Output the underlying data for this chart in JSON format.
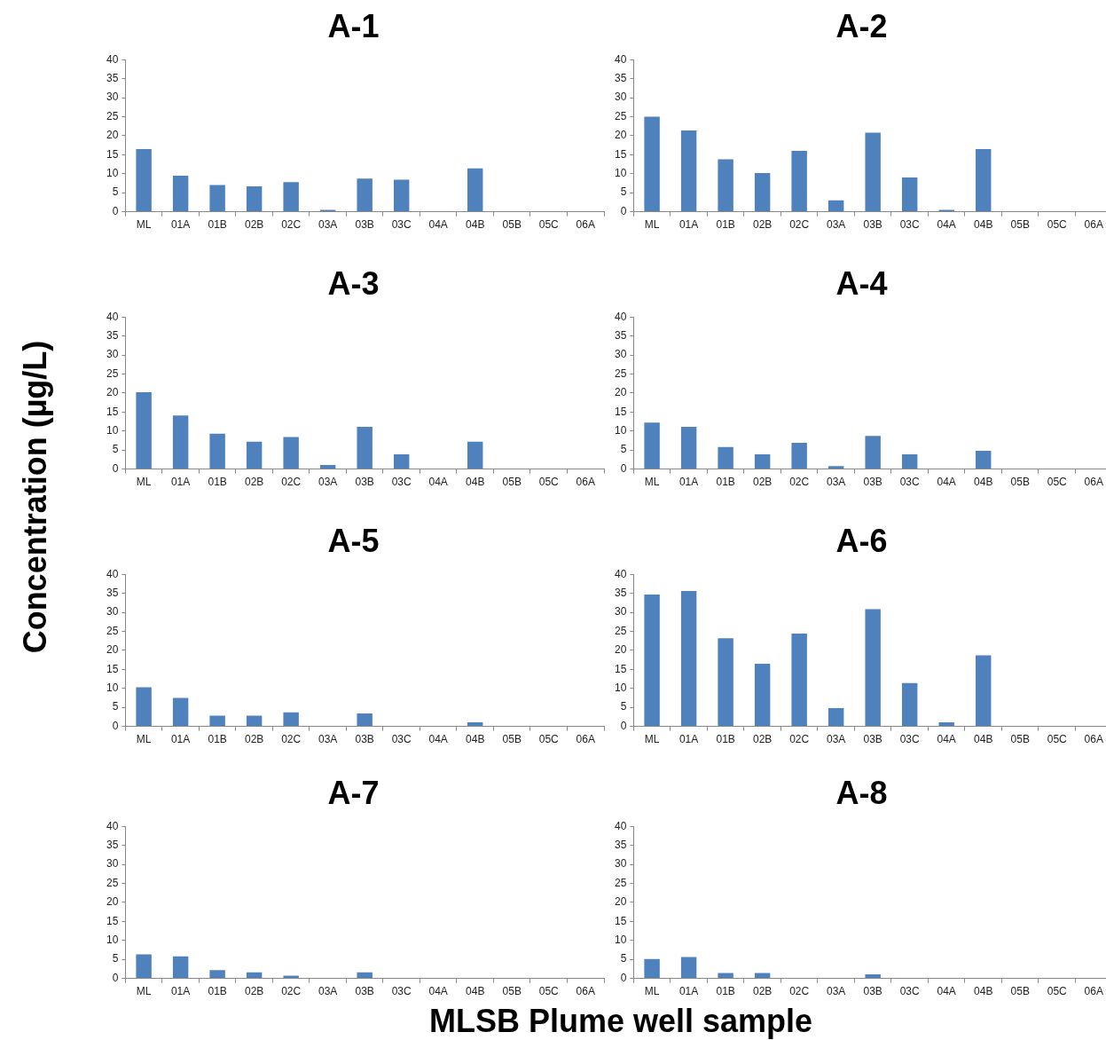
{
  "chart_data": [
    {
      "type": "bar",
      "title": "A-1",
      "ylabel": "Concentration (µg/L)",
      "categories": [
        "ML",
        "01A",
        "01B",
        "02B",
        "02C",
        "03A",
        "03B",
        "03C",
        "04A",
        "04B",
        "05B",
        "05C",
        "06A"
      ],
      "values": [
        16.5,
        9.5,
        7,
        6.7,
        7.8,
        0.5,
        8.7,
        8.4,
        0,
        11.4,
        0,
        0,
        0
      ],
      "color": "#4f81bd",
      "ylim": [
        0,
        40
      ],
      "yticks": [
        0,
        5,
        10,
        15,
        20,
        25,
        30,
        35,
        40
      ],
      "grid": false
    },
    {
      "type": "bar",
      "title": "A-2",
      "categories": [
        "ML",
        "01A",
        "01B",
        "02B",
        "02C",
        "03A",
        "03B",
        "03C",
        "04A",
        "04B",
        "05B",
        "05C",
        "06A"
      ],
      "values": [
        25,
        21.4,
        13.8,
        10.2,
        16,
        3,
        20.8,
        9,
        0.5,
        16.5,
        0,
        0,
        0
      ],
      "color": "#4f81bd",
      "ylim": [
        0,
        40
      ],
      "yticks": [
        0,
        5,
        10,
        15,
        20,
        25,
        30,
        35,
        40
      ],
      "grid": false
    },
    {
      "type": "bar",
      "title": "A-3",
      "categories": [
        "ML",
        "01A",
        "01B",
        "02B",
        "02C",
        "03A",
        "03B",
        "03C",
        "04A",
        "04B",
        "05B",
        "05C",
        "06A"
      ],
      "values": [
        20.2,
        14.1,
        9.3,
        7.2,
        8.4,
        1.1,
        11.1,
        3.9,
        0,
        7.2,
        0,
        0,
        0
      ],
      "color": "#4f81bd",
      "ylim": [
        0,
        40
      ],
      "yticks": [
        0,
        5,
        10,
        15,
        20,
        25,
        30,
        35,
        40
      ],
      "grid": false
    },
    {
      "type": "bar",
      "title": "A-4",
      "categories": [
        "ML",
        "01A",
        "01B",
        "02B",
        "02C",
        "03A",
        "03B",
        "03C",
        "04A",
        "04B",
        "05B",
        "05C",
        "06A"
      ],
      "values": [
        12.2,
        11.1,
        5.8,
        3.9,
        6.9,
        0.8,
        8.7,
        3.9,
        0,
        4.8,
        0,
        0,
        0
      ],
      "color": "#4f81bd",
      "ylim": [
        0,
        40
      ],
      "yticks": [
        0,
        5,
        10,
        15,
        20,
        25,
        30,
        35,
        40
      ],
      "grid": false
    },
    {
      "type": "bar",
      "title": "A-5",
      "categories": [
        "ML",
        "01A",
        "01B",
        "02B",
        "02C",
        "03A",
        "03B",
        "03C",
        "04A",
        "04B",
        "05B",
        "05C",
        "06A"
      ],
      "values": [
        10.3,
        7.5,
        2.8,
        2.8,
        3.7,
        0,
        3.4,
        0,
        0,
        1.1,
        0,
        0,
        0
      ],
      "color": "#4f81bd",
      "ylim": [
        0,
        40
      ],
      "yticks": [
        0,
        5,
        10,
        15,
        20,
        25,
        30,
        35,
        40
      ],
      "grid": false
    },
    {
      "type": "bar",
      "title": "A-6",
      "categories": [
        "ML",
        "01A",
        "01B",
        "02B",
        "02C",
        "03A",
        "03B",
        "03C",
        "04A",
        "04B",
        "05B",
        "05C",
        "06A"
      ],
      "values": [
        34.7,
        35.6,
        23.2,
        16.5,
        24.4,
        4.8,
        30.8,
        11.4,
        1.1,
        18.7,
        0,
        0,
        0
      ],
      "color": "#4f81bd",
      "ylim": [
        0,
        40
      ],
      "yticks": [
        0,
        5,
        10,
        15,
        20,
        25,
        30,
        35,
        40
      ],
      "grid": false
    },
    {
      "type": "bar",
      "title": "A-7",
      "categories": [
        "ML",
        "01A",
        "01B",
        "02B",
        "02C",
        "03A",
        "03B",
        "03C",
        "04A",
        "04B",
        "05B",
        "05C",
        "06A"
      ],
      "values": [
        6.3,
        5.8,
        2.2,
        1.6,
        0.7,
        0,
        1.6,
        0,
        0,
        0,
        0,
        0,
        0
      ],
      "color": "#4f81bd",
      "ylim": [
        0,
        40
      ],
      "yticks": [
        0,
        5,
        10,
        15,
        20,
        25,
        30,
        35,
        40
      ],
      "grid": false
    },
    {
      "type": "bar",
      "title": "A-8",
      "xlabel": "MLSB Plume well sample",
      "categories": [
        "ML",
        "01A",
        "01B",
        "02B",
        "02C",
        "03A",
        "03B",
        "03C",
        "04A",
        "04B",
        "05B",
        "05C",
        "06A"
      ],
      "values": [
        5.1,
        5.6,
        1.4,
        1.4,
        0,
        0,
        1.1,
        0,
        0,
        0,
        0,
        0,
        0
      ],
      "color": "#4f81bd",
      "ylim": [
        0,
        40
      ],
      "yticks": [
        0,
        5,
        10,
        15,
        20,
        25,
        30,
        35,
        40
      ],
      "grid": false
    }
  ]
}
